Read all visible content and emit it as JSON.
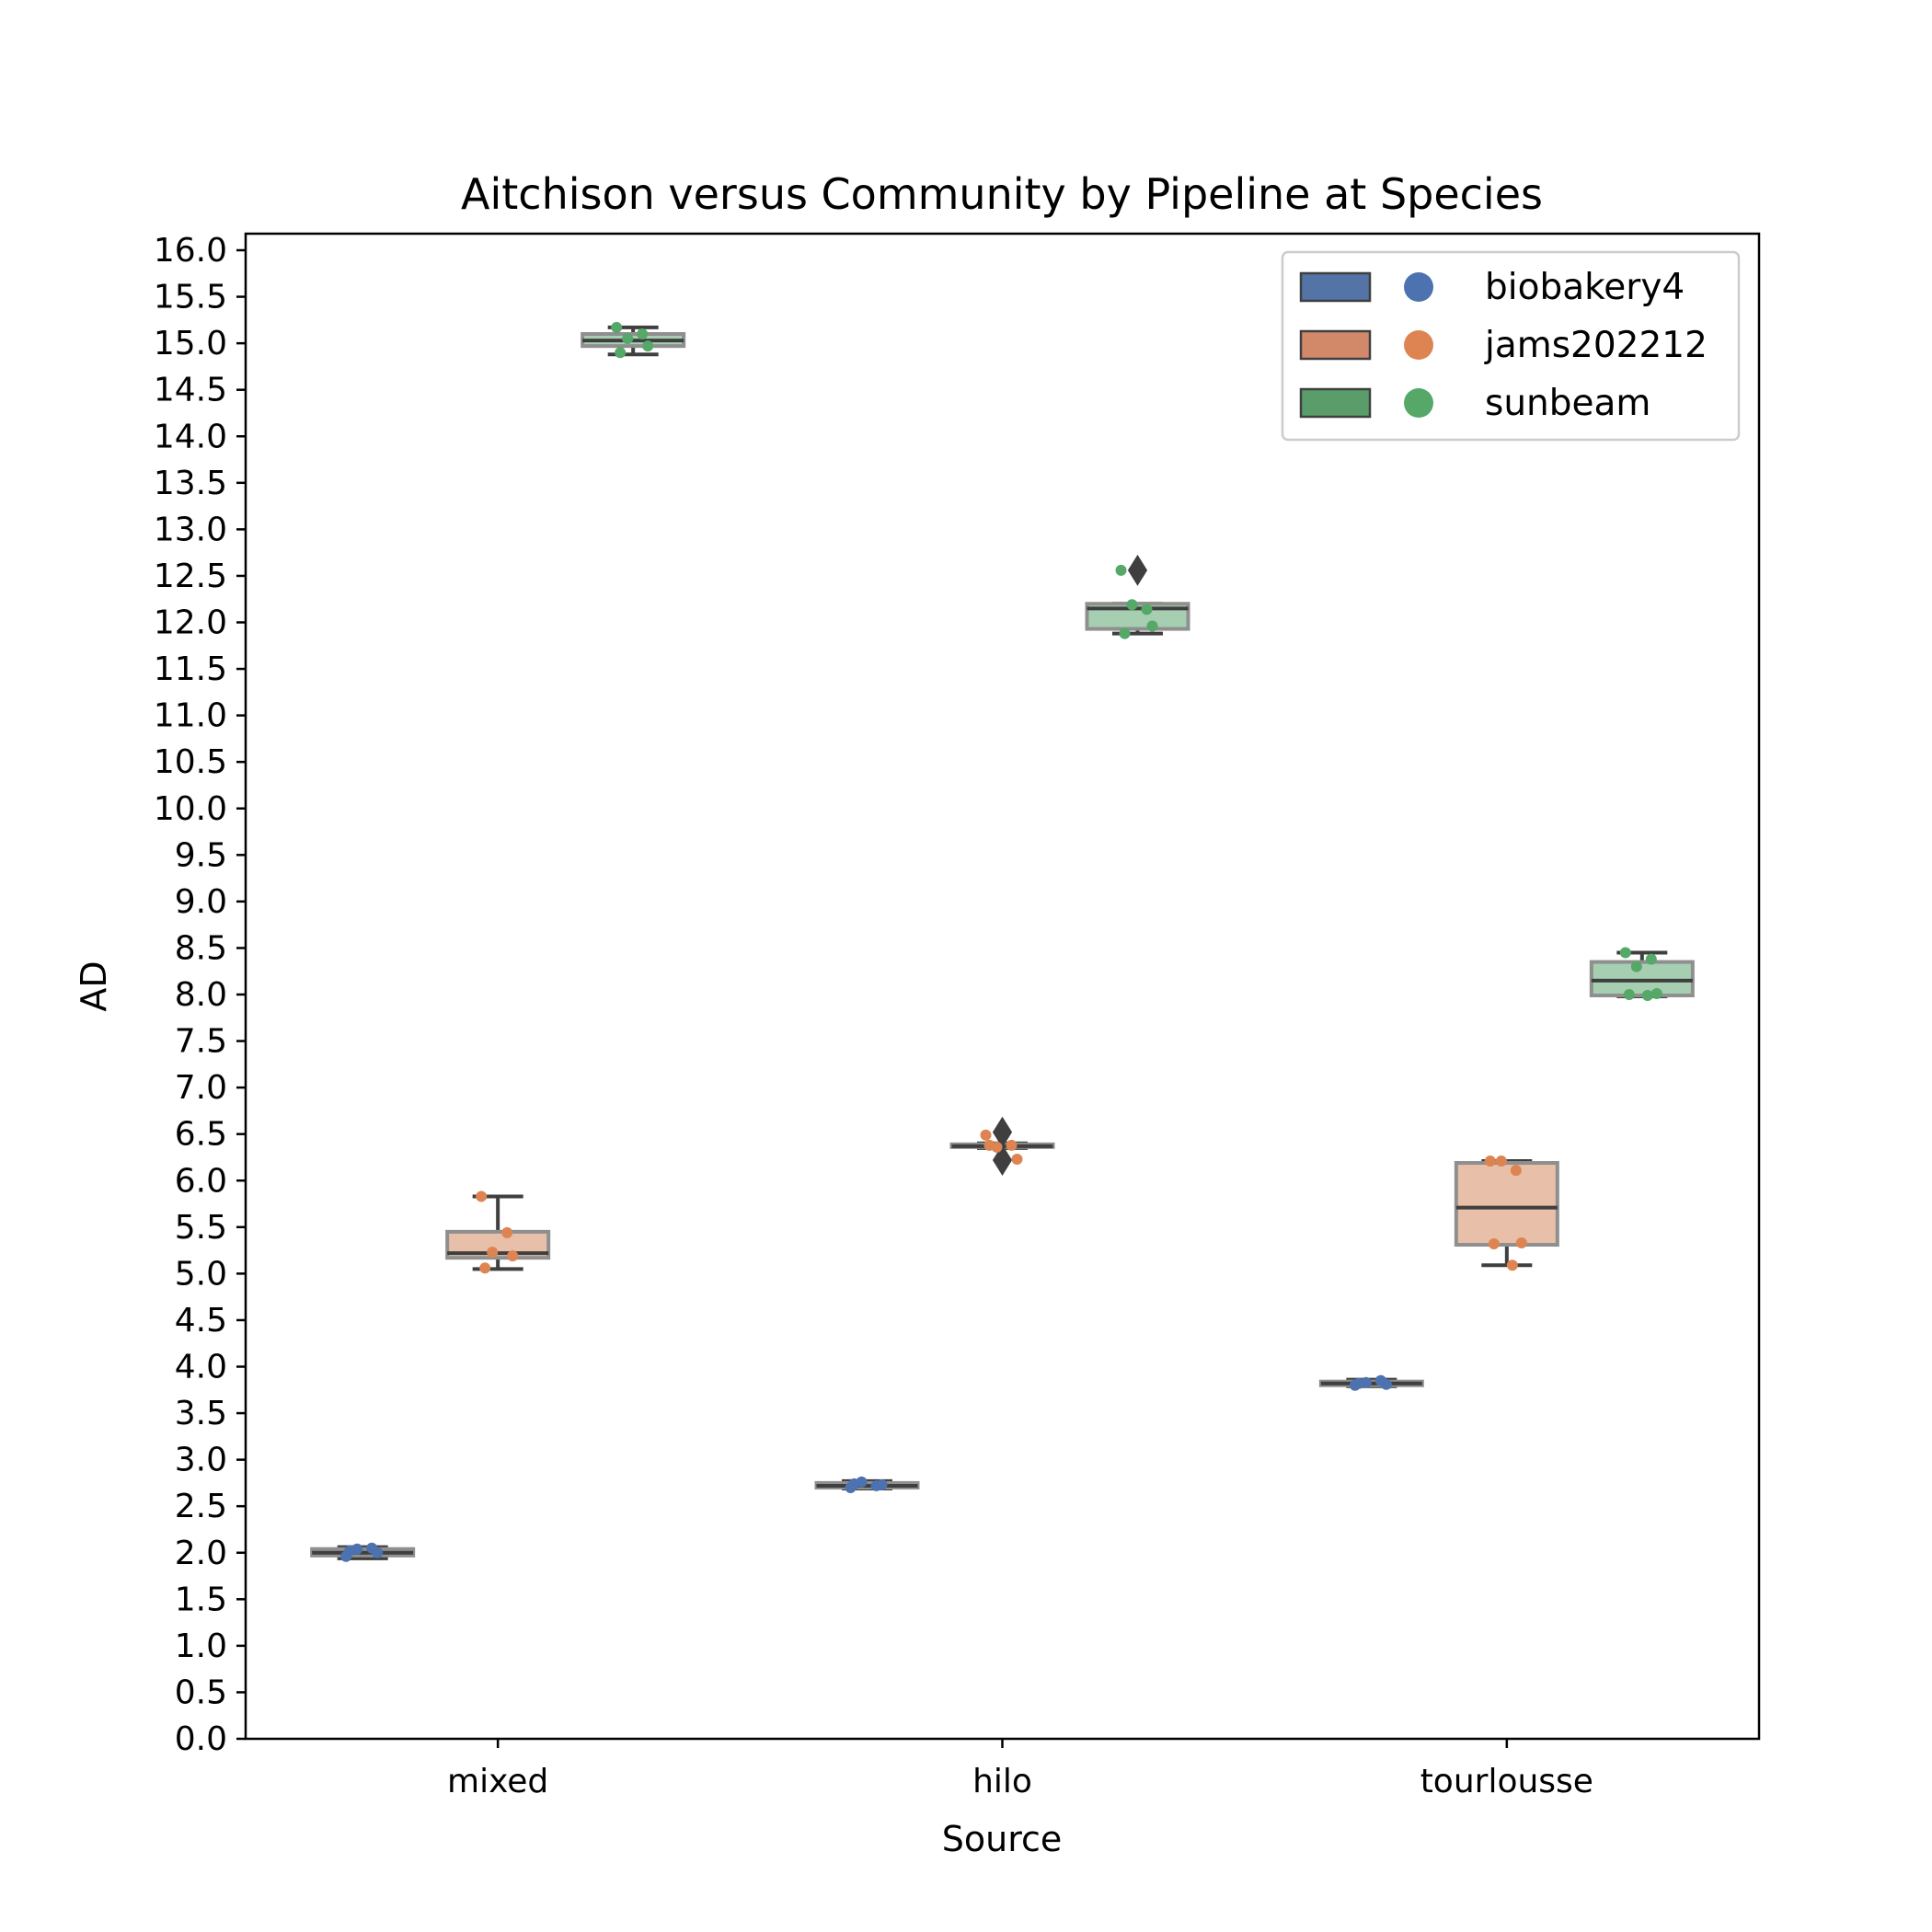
{
  "chart_data": {
    "type": "box",
    "title": "Aitchison versus Community by Pipeline at Species",
    "xlabel": "Source",
    "ylabel": "AD",
    "ylim": [
      0,
      16.2
    ],
    "yticks": [
      "0.0",
      "0.5",
      "1.0",
      "1.5",
      "2.0",
      "2.5",
      "3.0",
      "3.5",
      "4.0",
      "4.5",
      "5.0",
      "5.5",
      "6.0",
      "6.5",
      "7.0",
      "7.5",
      "8.0",
      "8.5",
      "9.0",
      "9.5",
      "10.0",
      "10.5",
      "11.0",
      "11.5",
      "12.0",
      "12.5",
      "13.0",
      "13.5",
      "14.0",
      "14.5",
      "15.0",
      "15.5",
      "16.0"
    ],
    "categories": [
      "mixed",
      "hilo",
      "tourlousse"
    ],
    "legend_position": "top-right",
    "grid": false,
    "series": [
      {
        "name": "biobakery4",
        "color": "#4c72b0",
        "box_fill": "#5473a6",
        "box_fill_light": "#8aa2c8",
        "boxes": [
          {
            "category": "mixed",
            "whislo": 1.94,
            "q1": 1.97,
            "median": 2.0,
            "q3": 2.04,
            "whishi": 2.06,
            "outliers": []
          },
          {
            "category": "hilo",
            "whislo": 2.69,
            "q1": 2.7,
            "median": 2.72,
            "q3": 2.75,
            "whishi": 2.77,
            "outliers": []
          },
          {
            "category": "tourlousse",
            "whislo": 3.79,
            "q1": 3.8,
            "median": 3.82,
            "q3": 3.84,
            "whishi": 3.86,
            "outliers": []
          }
        ],
        "points": [
          {
            "category": "mixed",
            "values": [
              1.96,
              2.05,
              2.04,
              2.0,
              2.02
            ]
          },
          {
            "category": "hilo",
            "values": [
              2.7,
              2.72,
              2.76,
              2.73,
              2.74
            ]
          },
          {
            "category": "tourlousse",
            "values": [
              3.8,
              3.85,
              3.83,
              3.81,
              3.82
            ]
          }
        ]
      },
      {
        "name": "jams202212",
        "color": "#dd8452",
        "box_fill": "#d2896a",
        "box_fill_light": "#e8bfa8",
        "boxes": [
          {
            "category": "mixed",
            "whislo": 5.05,
            "q1": 5.17,
            "median": 5.22,
            "q3": 5.45,
            "whishi": 5.83,
            "outliers": []
          },
          {
            "category": "hilo",
            "whislo": 6.35,
            "q1": 6.36,
            "median": 6.37,
            "q3": 6.39,
            "whishi": 6.4,
            "outliers": [
              6.52,
              6.22
            ]
          },
          {
            "category": "tourlousse",
            "whislo": 5.09,
            "q1": 5.31,
            "median": 5.71,
            "q3": 6.19,
            "whishi": 6.21,
            "outliers": []
          }
        ],
        "points": [
          {
            "category": "mixed",
            "values": [
              5.83,
              5.44,
              5.23,
              5.19,
              5.06
            ]
          },
          {
            "category": "hilo",
            "values": [
              6.49,
              6.38,
              6.36,
              6.23,
              6.38
            ]
          },
          {
            "category": "tourlousse",
            "values": [
              6.21,
              6.11,
              6.21,
              5.33,
              5.32,
              5.09
            ]
          }
        ]
      },
      {
        "name": "sunbeam",
        "color": "#55a868",
        "box_fill": "#5a9d6a",
        "box_fill_light": "#a6cfb1",
        "boxes": [
          {
            "category": "mixed",
            "whislo": 14.88,
            "q1": 14.97,
            "median": 15.03,
            "q3": 15.1,
            "whishi": 15.17,
            "outliers": []
          },
          {
            "category": "hilo",
            "whislo": 11.88,
            "q1": 11.93,
            "median": 12.15,
            "q3": 12.2,
            "whishi": 12.2,
            "outliers": [
              12.56
            ]
          },
          {
            "category": "tourlousse",
            "whislo": 7.98,
            "q1": 7.99,
            "median": 8.15,
            "q3": 8.35,
            "whishi": 8.45,
            "outliers": []
          }
        ],
        "points": [
          {
            "category": "mixed",
            "values": [
              15.17,
              15.1,
              15.05,
              14.97,
              14.9
            ]
          },
          {
            "category": "hilo",
            "values": [
              12.56,
              12.14,
              12.19,
              11.96,
              11.88
            ]
          },
          {
            "category": "tourlousse",
            "values": [
              8.45,
              8.38,
              8.3,
              8.01,
              8.0,
              7.99
            ]
          }
        ]
      }
    ]
  }
}
